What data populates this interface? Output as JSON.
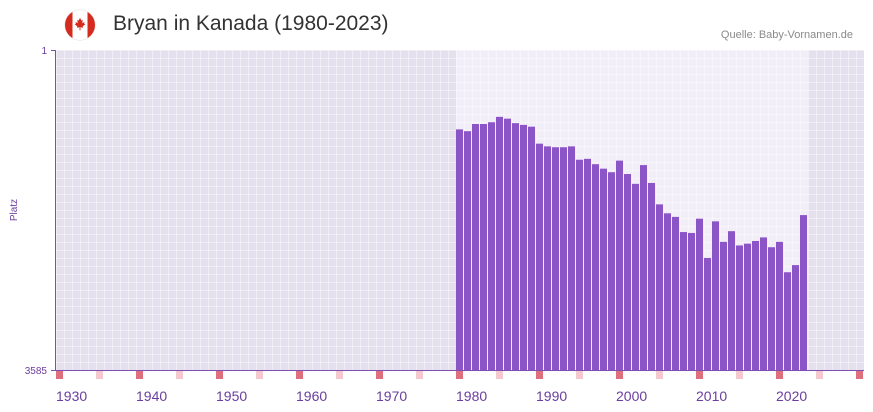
{
  "icons": {
    "flag": "canada-flag-icon"
  },
  "colors": {
    "bar": "#8b55c8",
    "axis": "#7d4fb3",
    "tick_label": "#6b3d9e",
    "bg_outside": "#e4e0ee",
    "bg_data": "#f1eef8",
    "grid": "#ffffff",
    "marker_decade": "#e06f7e",
    "marker_half": "#f3c8cf",
    "flag_red": "#d52b1e"
  },
  "chart_data": {
    "type": "bar",
    "title": "Bryan in Kanada (1980-2023)",
    "source": "Quelle: Baby-Vornamen.de",
    "xlabel": "",
    "ylabel": "Platz",
    "y_inverted": true,
    "ylim": [
      1,
      3585
    ],
    "yticks": [
      {
        "value": 1,
        "label": "1"
      },
      {
        "value": 3585,
        "label": "3585"
      }
    ],
    "xlim": [
      1930,
      2031
    ],
    "xticks": [
      "1930",
      "1940",
      "1950",
      "1960",
      "1970",
      "1980",
      "1990",
      "2000",
      "2010",
      "2020"
    ],
    "grid": true,
    "x": [
      1980,
      1981,
      1982,
      1983,
      1984,
      1985,
      1986,
      1987,
      1988,
      1989,
      1990,
      1991,
      1992,
      1993,
      1994,
      1995,
      1996,
      1997,
      1998,
      1999,
      2000,
      2001,
      2002,
      2003,
      2004,
      2005,
      2006,
      2007,
      2008,
      2009,
      2010,
      2011,
      2012,
      2013,
      2014,
      2015,
      2016,
      2017,
      2018,
      2019,
      2020,
      2021,
      2022,
      2023
    ],
    "values": [
      890,
      910,
      830,
      830,
      810,
      750,
      770,
      820,
      840,
      860,
      1050,
      1080,
      1090,
      1090,
      1080,
      1230,
      1220,
      1280,
      1330,
      1370,
      1240,
      1390,
      1500,
      1290,
      1490,
      1730,
      1830,
      1870,
      2040,
      2050,
      1890,
      2330,
      1920,
      2150,
      2030,
      2190,
      2170,
      2140,
      2100,
      2210,
      2150,
      2490,
      2410,
      1850
    ]
  }
}
